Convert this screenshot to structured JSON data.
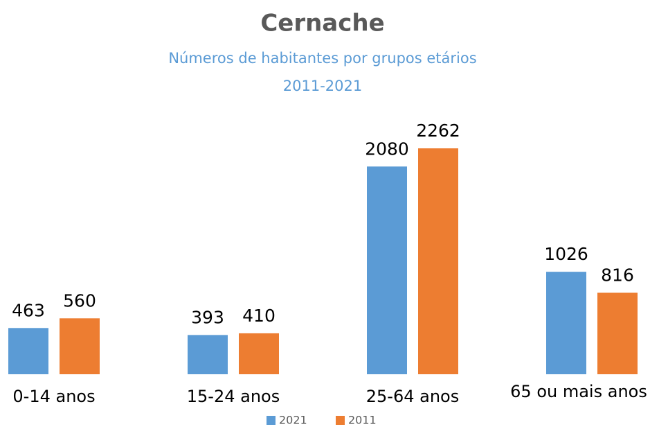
{
  "chart_data": {
    "type": "bar",
    "title": "Cernache",
    "subtitle": [
      "Números de habitantes por grupos etários",
      "2011-2021"
    ],
    "categories": [
      "0-14 anos",
      "15-24 anos",
      "25-64 anos",
      "65 ou mais anos"
    ],
    "series": [
      {
        "name": "2021",
        "color": "#5b9bd5",
        "values": [
          463,
          393,
          2080,
          1026
        ]
      },
      {
        "name": "2011",
        "color": "#ed7d31",
        "values": [
          560,
          410,
          2262,
          816
        ]
      }
    ],
    "legend": "bottom"
  }
}
